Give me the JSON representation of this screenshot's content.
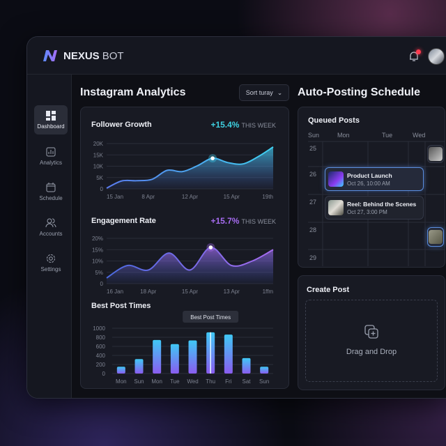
{
  "app": {
    "brand_main": "NEXUS",
    "brand_sub": "BOT",
    "notification_badge": true
  },
  "sidebar": {
    "items": [
      {
        "label": "Dashboard",
        "icon": "dashboard-icon",
        "active": true
      },
      {
        "label": "Analytics",
        "icon": "analytics-icon"
      },
      {
        "label": "Schedule",
        "icon": "calendar-icon"
      },
      {
        "label": "Accounts",
        "icon": "users-icon"
      },
      {
        "label": "Settings",
        "icon": "gear-icon"
      }
    ]
  },
  "analytics": {
    "title": "Instagram Analytics",
    "sort_label": "Sort turay"
  },
  "follower": {
    "title": "Follower Growth",
    "change": "+15.4%",
    "period": "THIS WEEK",
    "color": "#3fd0e0"
  },
  "engagement": {
    "title": "Engagement Rate",
    "change": "+15.7%",
    "period": "THIS WEEK",
    "color": "#a66cf0"
  },
  "best_times": {
    "title": "Best Post Times",
    "tooltip": "Best Post Times"
  },
  "chart_data": [
    {
      "type": "area",
      "title": "Follower Growth",
      "x_labels": [
        "15 Jan",
        "8 Apr",
        "12 Apr",
        "15 Apr",
        "19th"
      ],
      "y_ticks": [
        "0",
        "5K",
        "10K",
        "15K",
        "20K"
      ],
      "ylim": [
        0,
        20000
      ],
      "values": [
        300,
        3500,
        3600,
        4200,
        8200,
        7600,
        10200,
        13500,
        11600,
        11000,
        14200,
        18500
      ],
      "highlight_index": 7,
      "grid": true
    },
    {
      "type": "area",
      "title": "Engagement Rate",
      "x_labels": [
        "16 Jan",
        "18 Apr",
        "15 Apr",
        "13 Apr",
        "1ffm"
      ],
      "y_ticks": [
        "0",
        "5%",
        "10%",
        "15%",
        "20%"
      ],
      "ylim": [
        0,
        20
      ],
      "values": [
        2.5,
        8,
        6,
        13.5,
        6,
        16,
        8,
        10,
        15
      ],
      "highlight_index": 5,
      "grid": true
    },
    {
      "type": "bar",
      "title": "Best Post Times",
      "categories": [
        "Mon",
        "Sun",
        "Mon",
        "Tue",
        "Wed",
        "Thu",
        "Fri",
        "Sat",
        "Sun"
      ],
      "values": [
        150,
        320,
        740,
        650,
        730,
        910,
        860,
        340,
        150
      ],
      "y_ticks": [
        "0",
        "200",
        "400",
        "600",
        "800",
        "1000"
      ],
      "ylim": [
        0,
        1000
      ],
      "highlight_index": 5,
      "grid": true
    }
  ],
  "schedule": {
    "title": "Auto-Posting Schedule",
    "queued_title": "Queued Posts",
    "days": [
      "Sun",
      "Mon",
      "Tue",
      "Wed"
    ],
    "rows": [
      "25",
      "26",
      "27",
      "28",
      "29"
    ],
    "posts": [
      {
        "title": "Product Launch",
        "time": "Oct 26, 10:00 AM",
        "selected": true
      },
      {
        "title": "Reel: Behind the Scenes",
        "time": "Oct 27, 3:00 PM"
      }
    ]
  },
  "create": {
    "title": "Create Post",
    "drop_label": "Drag and Drop"
  }
}
